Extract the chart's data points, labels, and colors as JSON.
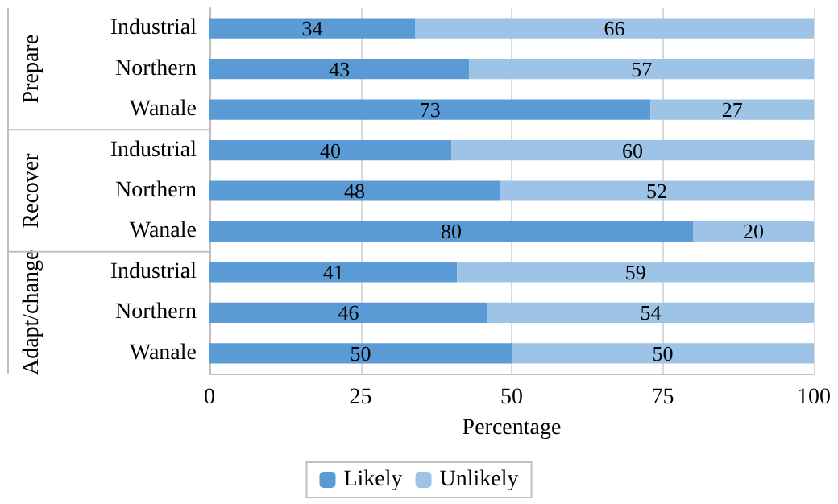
{
  "chart_data": {
    "type": "bar",
    "orientation": "horizontal",
    "stacked": true,
    "categories": [
      "Industrial",
      "Northern",
      "Wanale",
      "Industrial",
      "Northern",
      "Wanale",
      "Industrial",
      "Northern",
      "Wanale"
    ],
    "series": [
      {
        "name": "Likely",
        "color": "#5b9bd5",
        "values": [
          34,
          43,
          73,
          40,
          48,
          80,
          41,
          46,
          50
        ]
      },
      {
        "name": "Unlikely",
        "color": "#9dc3e6",
        "values": [
          66,
          57,
          27,
          60,
          52,
          20,
          59,
          54,
          50
        ]
      }
    ],
    "annotations": [
      "Prepare",
      "Recover",
      "Adapt/change"
    ],
    "xlabel": "Percentage",
    "xlim": [
      0,
      100
    ],
    "xticks": [
      0,
      25,
      50,
      75,
      100
    ],
    "grid": "x",
    "legend": "bottom",
    "data_labels": true
  }
}
